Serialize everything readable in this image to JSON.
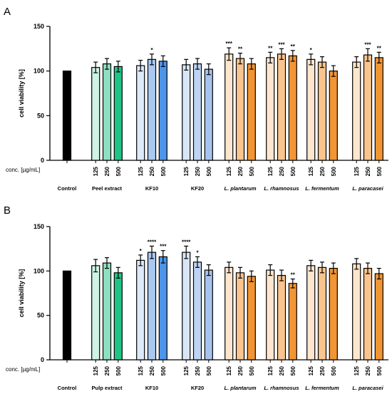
{
  "conc_label": "conc. [µg/mL]",
  "dose_labels": [
    "125",
    "250",
    "500"
  ],
  "colors": {
    "control": "#000000",
    "extract": [
      "#cdf4e4",
      "#8ee0c0",
      "#20c585"
    ],
    "kf10": [
      "#dbe9fb",
      "#a9c9f3",
      "#4d95e9"
    ],
    "kf20": [
      "#d8e5f8",
      "#bed4f2",
      "#a6c3ec"
    ],
    "lacto": [
      "#fde6cd",
      "#f9c48e",
      "#f29535"
    ]
  },
  "chart_data": [
    {
      "panel_label": "A",
      "type": "bar",
      "ylabel": "cell viability [%]",
      "ylim": [
        0,
        150
      ],
      "yticks": [
        0,
        50,
        100,
        150
      ],
      "groups": [
        {
          "label": "Control",
          "italic": false,
          "palette": "control",
          "bars": [
            {
              "value": 100,
              "error": 0,
              "sig": ""
            }
          ]
        },
        {
          "label": "Peel extract",
          "italic": false,
          "palette": "extract",
          "bars": [
            {
              "value": 104,
              "error": 6,
              "sig": ""
            },
            {
              "value": 108,
              "error": 6,
              "sig": ""
            },
            {
              "value": 105,
              "error": 6,
              "sig": ""
            }
          ]
        },
        {
          "label": "KF10",
          "italic": false,
          "palette": "kf10",
          "bars": [
            {
              "value": 106,
              "error": 6,
              "sig": ""
            },
            {
              "value": 113,
              "error": 6,
              "sig": "*"
            },
            {
              "value": 111,
              "error": 6,
              "sig": ""
            }
          ]
        },
        {
          "label": "KF20",
          "italic": false,
          "palette": "kf20",
          "bars": [
            {
              "value": 107,
              "error": 6,
              "sig": ""
            },
            {
              "value": 108,
              "error": 6,
              "sig": ""
            },
            {
              "value": 102,
              "error": 6,
              "sig": ""
            }
          ]
        },
        {
          "label": "L. plantarum",
          "italic": true,
          "palette": "lacto",
          "bars": [
            {
              "value": 119,
              "error": 7,
              "sig": "***"
            },
            {
              "value": 114,
              "error": 6,
              "sig": "**"
            },
            {
              "value": 108,
              "error": 6,
              "sig": ""
            }
          ]
        },
        {
          "label": "L. rhamnosus",
          "italic": true,
          "palette": "lacto",
          "bars": [
            {
              "value": 115,
              "error": 6,
              "sig": "**"
            },
            {
              "value": 119,
              "error": 6,
              "sig": "***"
            },
            {
              "value": 117,
              "error": 6,
              "sig": "**"
            }
          ]
        },
        {
          "label": "L. fermentum",
          "italic": true,
          "palette": "lacto",
          "bars": [
            {
              "value": 113,
              "error": 6,
              "sig": "*"
            },
            {
              "value": 110,
              "error": 6,
              "sig": ""
            },
            {
              "value": 100,
              "error": 6,
              "sig": ""
            }
          ]
        },
        {
          "label": "L. paracasei",
          "italic": true,
          "palette": "lacto",
          "bars": [
            {
              "value": 110,
              "error": 6,
              "sig": ""
            },
            {
              "value": 118,
              "error": 7,
              "sig": "***"
            },
            {
              "value": 115,
              "error": 6,
              "sig": "**"
            }
          ]
        }
      ]
    },
    {
      "panel_label": "B",
      "type": "bar",
      "ylabel": "cell viability [%]",
      "ylim": [
        0,
        150
      ],
      "yticks": [
        0,
        50,
        100,
        150
      ],
      "groups": [
        {
          "label": "Control",
          "italic": false,
          "palette": "control",
          "bars": [
            {
              "value": 100,
              "error": 0,
              "sig": ""
            }
          ]
        },
        {
          "label": "Pulp extract",
          "italic": false,
          "palette": "extract",
          "bars": [
            {
              "value": 106,
              "error": 7,
              "sig": ""
            },
            {
              "value": 109,
              "error": 6,
              "sig": ""
            },
            {
              "value": 98,
              "error": 6,
              "sig": ""
            }
          ]
        },
        {
          "label": "KF10",
          "italic": false,
          "palette": "kf10",
          "bars": [
            {
              "value": 112,
              "error": 6,
              "sig": "*"
            },
            {
              "value": 121,
              "error": 7,
              "sig": "****"
            },
            {
              "value": 116,
              "error": 7,
              "sig": "***"
            }
          ]
        },
        {
          "label": "KF20",
          "italic": false,
          "palette": "kf20",
          "bars": [
            {
              "value": 121,
              "error": 7,
              "sig": "****"
            },
            {
              "value": 110,
              "error": 6,
              "sig": "*"
            },
            {
              "value": 101,
              "error": 6,
              "sig": ""
            }
          ]
        },
        {
          "label": "L. plantarum",
          "italic": true,
          "palette": "lacto",
          "bars": [
            {
              "value": 104,
              "error": 6,
              "sig": ""
            },
            {
              "value": 98,
              "error": 6,
              "sig": ""
            },
            {
              "value": 94,
              "error": 6,
              "sig": ""
            }
          ]
        },
        {
          "label": "L. rhamnosus",
          "italic": true,
          "palette": "lacto",
          "bars": [
            {
              "value": 101,
              "error": 6,
              "sig": ""
            },
            {
              "value": 95,
              "error": 6,
              "sig": ""
            },
            {
              "value": 86,
              "error": 5,
              "sig": "**"
            }
          ]
        },
        {
          "label": "L. fermentum",
          "italic": true,
          "palette": "lacto",
          "bars": [
            {
              "value": 106,
              "error": 6,
              "sig": ""
            },
            {
              "value": 104,
              "error": 6,
              "sig": ""
            },
            {
              "value": 103,
              "error": 6,
              "sig": ""
            }
          ]
        },
        {
          "label": "L. paracasei",
          "italic": true,
          "palette": "lacto",
          "bars": [
            {
              "value": 108,
              "error": 6,
              "sig": ""
            },
            {
              "value": 103,
              "error": 6,
              "sig": ""
            },
            {
              "value": 97,
              "error": 6,
              "sig": ""
            }
          ]
        }
      ]
    }
  ]
}
